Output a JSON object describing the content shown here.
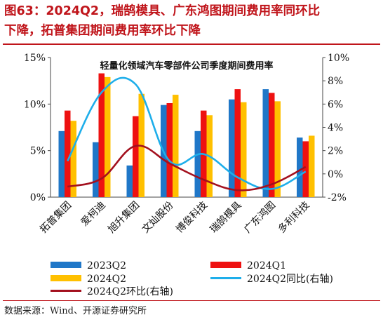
{
  "figure": {
    "title_line1": "图63：2024Q2，瑞鹄模具、广东鸿图期间费用率同环比",
    "title_line2": "下降，拓普集团期间费用率环比下降",
    "source": "数据来源：Wind、开源证券研究所"
  },
  "colors": {
    "q2023": "#1f77c8",
    "q2024q1": "#ee1111",
    "q2024q2": "#ffc000",
    "yoy": "#1eaeea",
    "qoq": "#a3101e"
  },
  "chart_data": {
    "type": "bar",
    "title": "轻量化领域汽车零部件公司季度期间费用率",
    "categories": [
      "拓普集团",
      "爱柯迪",
      "旭升集团",
      "文灿股份",
      "博俊科技",
      "瑞鹄模具",
      "广东鸿图",
      "多利科技"
    ],
    "left_axis": {
      "ylim": [
        0,
        15
      ],
      "ticks": [
        "0%",
        "5%",
        "10%",
        "15%"
      ]
    },
    "right_axis": {
      "ylim": [
        -2,
        10
      ],
      "ticks": [
        "-2%",
        "0%",
        "2%",
        "4%",
        "6%",
        "8%",
        "10%"
      ]
    },
    "series": [
      {
        "name": "2023Q2",
        "axis": "left",
        "kind": "bar",
        "values": [
          7.1,
          5.9,
          3.4,
          9.9,
          7.1,
          10.5,
          11.6,
          6.4
        ]
      },
      {
        "name": "2024Q1",
        "axis": "left",
        "kind": "bar",
        "values": [
          9.3,
          13.3,
          8.7,
          10.1,
          9.3,
          11.6,
          11.2,
          6.0
        ]
      },
      {
        "name": "2024Q2",
        "axis": "left",
        "kind": "bar",
        "values": [
          8.2,
          12.9,
          11.1,
          11.0,
          8.8,
          10.2,
          10.3,
          6.6
        ]
      },
      {
        "name": "2024Q2同比(右轴)",
        "axis": "right",
        "kind": "line",
        "values": [
          1.1,
          7.0,
          7.7,
          1.1,
          1.7,
          -0.3,
          -1.3,
          0.2
        ]
      },
      {
        "name": "2024Q2环比(右轴)",
        "axis": "right",
        "kind": "line",
        "values": [
          -1.1,
          -0.4,
          2.4,
          0.9,
          -0.5,
          -1.4,
          -0.9,
          0.6
        ]
      }
    ],
    "legend": [
      "2023Q2",
      "2024Q1",
      "2024Q2",
      "2024Q2同比(右轴)",
      "2024Q2环比(右轴)"
    ]
  }
}
